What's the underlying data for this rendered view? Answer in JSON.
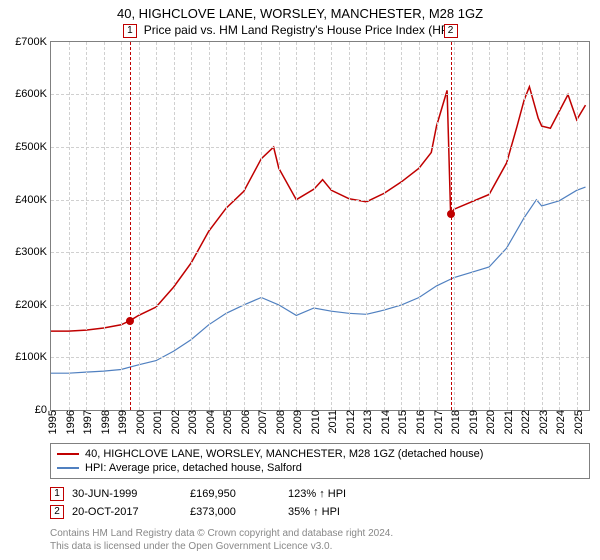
{
  "title": "40, HIGHCLOVE LANE, WORSLEY, MANCHESTER, M28 1GZ",
  "subtitle": "Price paid vs. HM Land Registry's House Price Index (HPI)",
  "chart": {
    "type": "line",
    "background_color": "#ffffff",
    "grid_color": "#d0d0d0",
    "border_color": "#808080",
    "x": {
      "min": 1995,
      "max": 2025.7,
      "ticks": [
        1995,
        1996,
        1997,
        1998,
        1999,
        2000,
        2001,
        2002,
        2003,
        2004,
        2005,
        2006,
        2007,
        2008,
        2009,
        2010,
        2011,
        2012,
        2013,
        2014,
        2015,
        2016,
        2017,
        2018,
        2019,
        2020,
        2021,
        2022,
        2023,
        2024,
        2025
      ],
      "tick_labels": [
        "1995",
        "1996",
        "1997",
        "1998",
        "1999",
        "2000",
        "2001",
        "2002",
        "2003",
        "2004",
        "2005",
        "2006",
        "2007",
        "2008",
        "2009",
        "2010",
        "2011",
        "2012",
        "2013",
        "2014",
        "2015",
        "2016",
        "2017",
        "2018",
        "2019",
        "2020",
        "2021",
        "2022",
        "2023",
        "2024",
        "2025"
      ],
      "label_fontsize": 11
    },
    "y": {
      "min": 0,
      "max": 700000,
      "ticks": [
        0,
        100000,
        200000,
        300000,
        400000,
        500000,
        600000,
        700000
      ],
      "tick_labels": [
        "£0",
        "£100K",
        "£200K",
        "£300K",
        "£400K",
        "£500K",
        "£600K",
        "£700K"
      ],
      "label_fontsize": 11
    },
    "series": [
      {
        "name": "40, HIGHCLOVE LANE, WORSLEY, MANCHESTER, M28 1GZ (detached house)",
        "color": "#c00000",
        "line_width": 1.5,
        "points": [
          [
            1995,
            150000
          ],
          [
            1996,
            150000
          ],
          [
            1997,
            152000
          ],
          [
            1998,
            156000
          ],
          [
            1999,
            162000
          ],
          [
            1999.5,
            169950
          ],
          [
            2000,
            180000
          ],
          [
            2001,
            196000
          ],
          [
            2002,
            234000
          ],
          [
            2003,
            280000
          ],
          [
            2004,
            340000
          ],
          [
            2005,
            384000
          ],
          [
            2006,
            416000
          ],
          [
            2007,
            478000
          ],
          [
            2007.7,
            500000
          ],
          [
            2008,
            460000
          ],
          [
            2009,
            400000
          ],
          [
            2010,
            420000
          ],
          [
            2010.5,
            438000
          ],
          [
            2011,
            418000
          ],
          [
            2012,
            402000
          ],
          [
            2013,
            396000
          ],
          [
            2014,
            412000
          ],
          [
            2015,
            434000
          ],
          [
            2016,
            460000
          ],
          [
            2016.7,
            490000
          ],
          [
            2017,
            540000
          ],
          [
            2017.6,
            608000
          ],
          [
            2017.8,
            373000
          ],
          [
            2018,
            382000
          ],
          [
            2019,
            396000
          ],
          [
            2020,
            410000
          ],
          [
            2021,
            470000
          ],
          [
            2021.6,
            540000
          ],
          [
            2022,
            590000
          ],
          [
            2022.3,
            615000
          ],
          [
            2022.8,
            555000
          ],
          [
            2023,
            540000
          ],
          [
            2023.5,
            536000
          ],
          [
            2024,
            568000
          ],
          [
            2024.5,
            600000
          ],
          [
            2025,
            552000
          ],
          [
            2025.5,
            580000
          ]
        ]
      },
      {
        "name": "HPI: Average price, detached house, Salford",
        "color": "#5080c0",
        "line_width": 1.2,
        "points": [
          [
            1995,
            70000
          ],
          [
            1996,
            70000
          ],
          [
            1997,
            72000
          ],
          [
            1998,
            74000
          ],
          [
            1999,
            77000
          ],
          [
            2000,
            86000
          ],
          [
            2001,
            94000
          ],
          [
            2002,
            112000
          ],
          [
            2003,
            134000
          ],
          [
            2004,
            162000
          ],
          [
            2005,
            184000
          ],
          [
            2006,
            200000
          ],
          [
            2007,
            214000
          ],
          [
            2008,
            200000
          ],
          [
            2009,
            180000
          ],
          [
            2010,
            194000
          ],
          [
            2011,
            188000
          ],
          [
            2012,
            184000
          ],
          [
            2013,
            182000
          ],
          [
            2014,
            190000
          ],
          [
            2015,
            200000
          ],
          [
            2016,
            214000
          ],
          [
            2017,
            236000
          ],
          [
            2018,
            252000
          ],
          [
            2019,
            262000
          ],
          [
            2020,
            272000
          ],
          [
            2021,
            308000
          ],
          [
            2022,
            366000
          ],
          [
            2022.7,
            400000
          ],
          [
            2023,
            388000
          ],
          [
            2024,
            398000
          ],
          [
            2025,
            418000
          ],
          [
            2025.5,
            424000
          ]
        ]
      }
    ],
    "markers": [
      {
        "id": "1",
        "x": 1999.5,
        "y": 169950
      },
      {
        "id": "2",
        "x": 2017.8,
        "y": 373000
      }
    ]
  },
  "legend": {
    "items": [
      {
        "color": "#c00000",
        "label": "40, HIGHCLOVE LANE, WORSLEY, MANCHESTER, M28 1GZ (detached house)"
      },
      {
        "color": "#5080c0",
        "label": "HPI: Average price, detached house, Salford"
      }
    ]
  },
  "transactions": [
    {
      "id": "1",
      "date": "30-JUN-1999",
      "price": "£169,950",
      "pct": "123%",
      "arrow": "↑",
      "suffix": "HPI"
    },
    {
      "id": "2",
      "date": "20-OCT-2017",
      "price": "£373,000",
      "pct": "35%",
      "arrow": "↑",
      "suffix": "HPI"
    }
  ],
  "footer": {
    "line1": "Contains HM Land Registry data © Crown copyright and database right 2024.",
    "line2": "This data is licensed under the Open Government Licence v3.0."
  }
}
